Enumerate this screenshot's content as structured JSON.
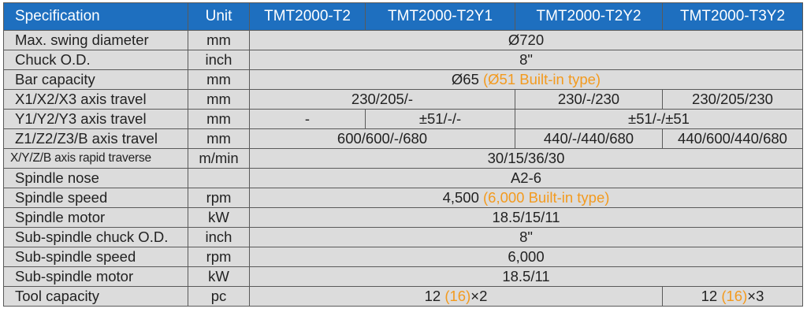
{
  "header": {
    "spec": "Specification",
    "unit": "Unit",
    "models": [
      "TMT2000-T2",
      "TMT2000-T2Y1",
      "TMT2000-T2Y2",
      "TMT2000-T3Y2"
    ]
  },
  "colors": {
    "header_bg": "#1e6fbf",
    "row_bg": "#dcdcdc",
    "accent": "#f39a1e"
  },
  "rows": {
    "swing": {
      "label": "Max. swing diameter",
      "unit": "mm",
      "value": "Ø720"
    },
    "chuck": {
      "label": "Chuck O.D.",
      "unit": "inch",
      "value": "8\""
    },
    "bar": {
      "label": "Bar capacity",
      "unit": "mm",
      "value": "Ø65",
      "note": "(Ø51 Built-in type)"
    },
    "x_travel": {
      "label": "X1/X2/X3 axis travel",
      "unit": "mm",
      "v_t2_y1": "230/205/-",
      "v_y2": "230/-/230",
      "v_t3": "230/205/230"
    },
    "y_travel": {
      "label": "Y1/Y2/Y3 axis travel",
      "unit": "mm",
      "v_t2": "-",
      "v_y1": "±51/-/-",
      "v_y2_t3": "±51/-/±51"
    },
    "z_travel": {
      "label": "Z1/Z2/Z3/B axis travel",
      "unit": "mm",
      "v_t2_y1": "600/600/-/680",
      "v_y2": "440/-/440/680",
      "v_t3": "440/600/440/680"
    },
    "rapid": {
      "label": "X/Y/Z/B axis rapid traverse",
      "unit": "m/min",
      "value": "30/15/36/30"
    },
    "nose": {
      "label": "Spindle nose",
      "unit": "",
      "value": "A2-6"
    },
    "speed": {
      "label": "Spindle speed",
      "unit": "rpm",
      "value": "4,500",
      "note": "(6,000 Built-in type)"
    },
    "motor": {
      "label": "Spindle motor",
      "unit": "kW",
      "value": "18.5/15/11"
    },
    "sub_chuck": {
      "label": "Sub-spindle chuck O.D.",
      "unit": "inch",
      "value": "8\""
    },
    "sub_speed": {
      "label": "Sub-spindle speed",
      "unit": "rpm",
      "value": "6,000"
    },
    "sub_motor": {
      "label": "Sub-spindle motor",
      "unit": "kW",
      "value": "18.5/11"
    },
    "tool": {
      "label": "Tool capacity",
      "unit": "pc",
      "v1_a": "12",
      "v1_b": "(16)",
      "v1_c": "×2",
      "v2_a": "12",
      "v2_b": "(16)",
      "v2_c": "×3"
    }
  }
}
